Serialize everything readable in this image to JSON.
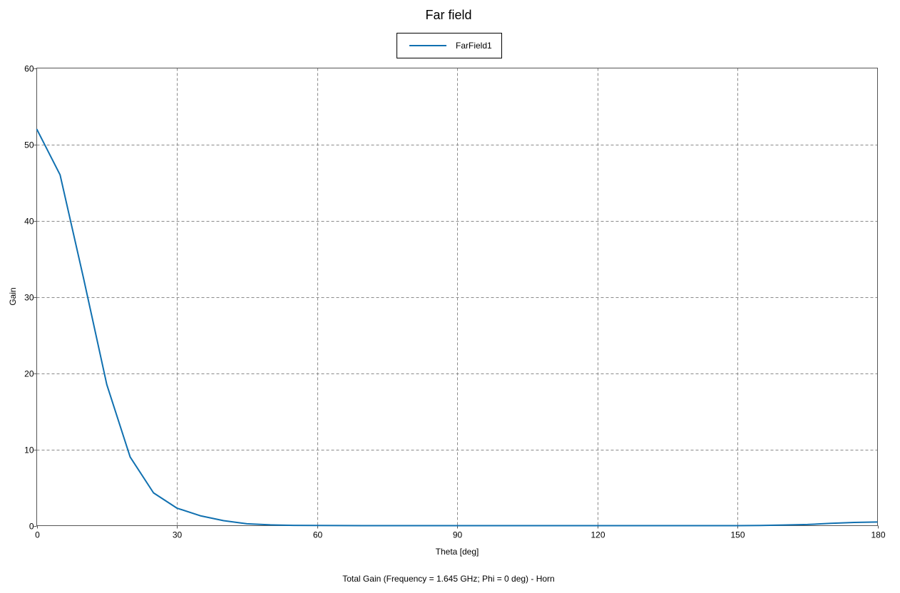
{
  "chart_data": {
    "type": "line",
    "title": "Far field",
    "xlabel": "Theta [deg]",
    "ylabel": "Gain",
    "caption": "Total Gain (Frequency = 1.645 GHz; Phi = 0 deg) - Horn",
    "xlim": [
      0,
      180
    ],
    "ylim": [
      0,
      60
    ],
    "xticks": [
      0,
      30,
      60,
      90,
      120,
      150,
      180
    ],
    "yticks": [
      0,
      10,
      20,
      30,
      40,
      50,
      60
    ],
    "grid": true,
    "legend_position": "top-center",
    "series": [
      {
        "name": "FarField1",
        "color": "#1070b0",
        "x": [
          0,
          5,
          10,
          15,
          20,
          25,
          30,
          35,
          40,
          45,
          50,
          55,
          60,
          70,
          80,
          90,
          100,
          110,
          120,
          130,
          140,
          150,
          155,
          160,
          165,
          170,
          175,
          180
        ],
        "y": [
          52,
          46,
          32.5,
          18.5,
          9,
          4.3,
          2.3,
          1.3,
          0.65,
          0.25,
          0.1,
          0.04,
          0.02,
          0,
          0,
          0,
          0,
          0,
          0,
          0,
          0,
          0,
          0.02,
          0.08,
          0.15,
          0.3,
          0.42,
          0.48
        ]
      }
    ]
  }
}
